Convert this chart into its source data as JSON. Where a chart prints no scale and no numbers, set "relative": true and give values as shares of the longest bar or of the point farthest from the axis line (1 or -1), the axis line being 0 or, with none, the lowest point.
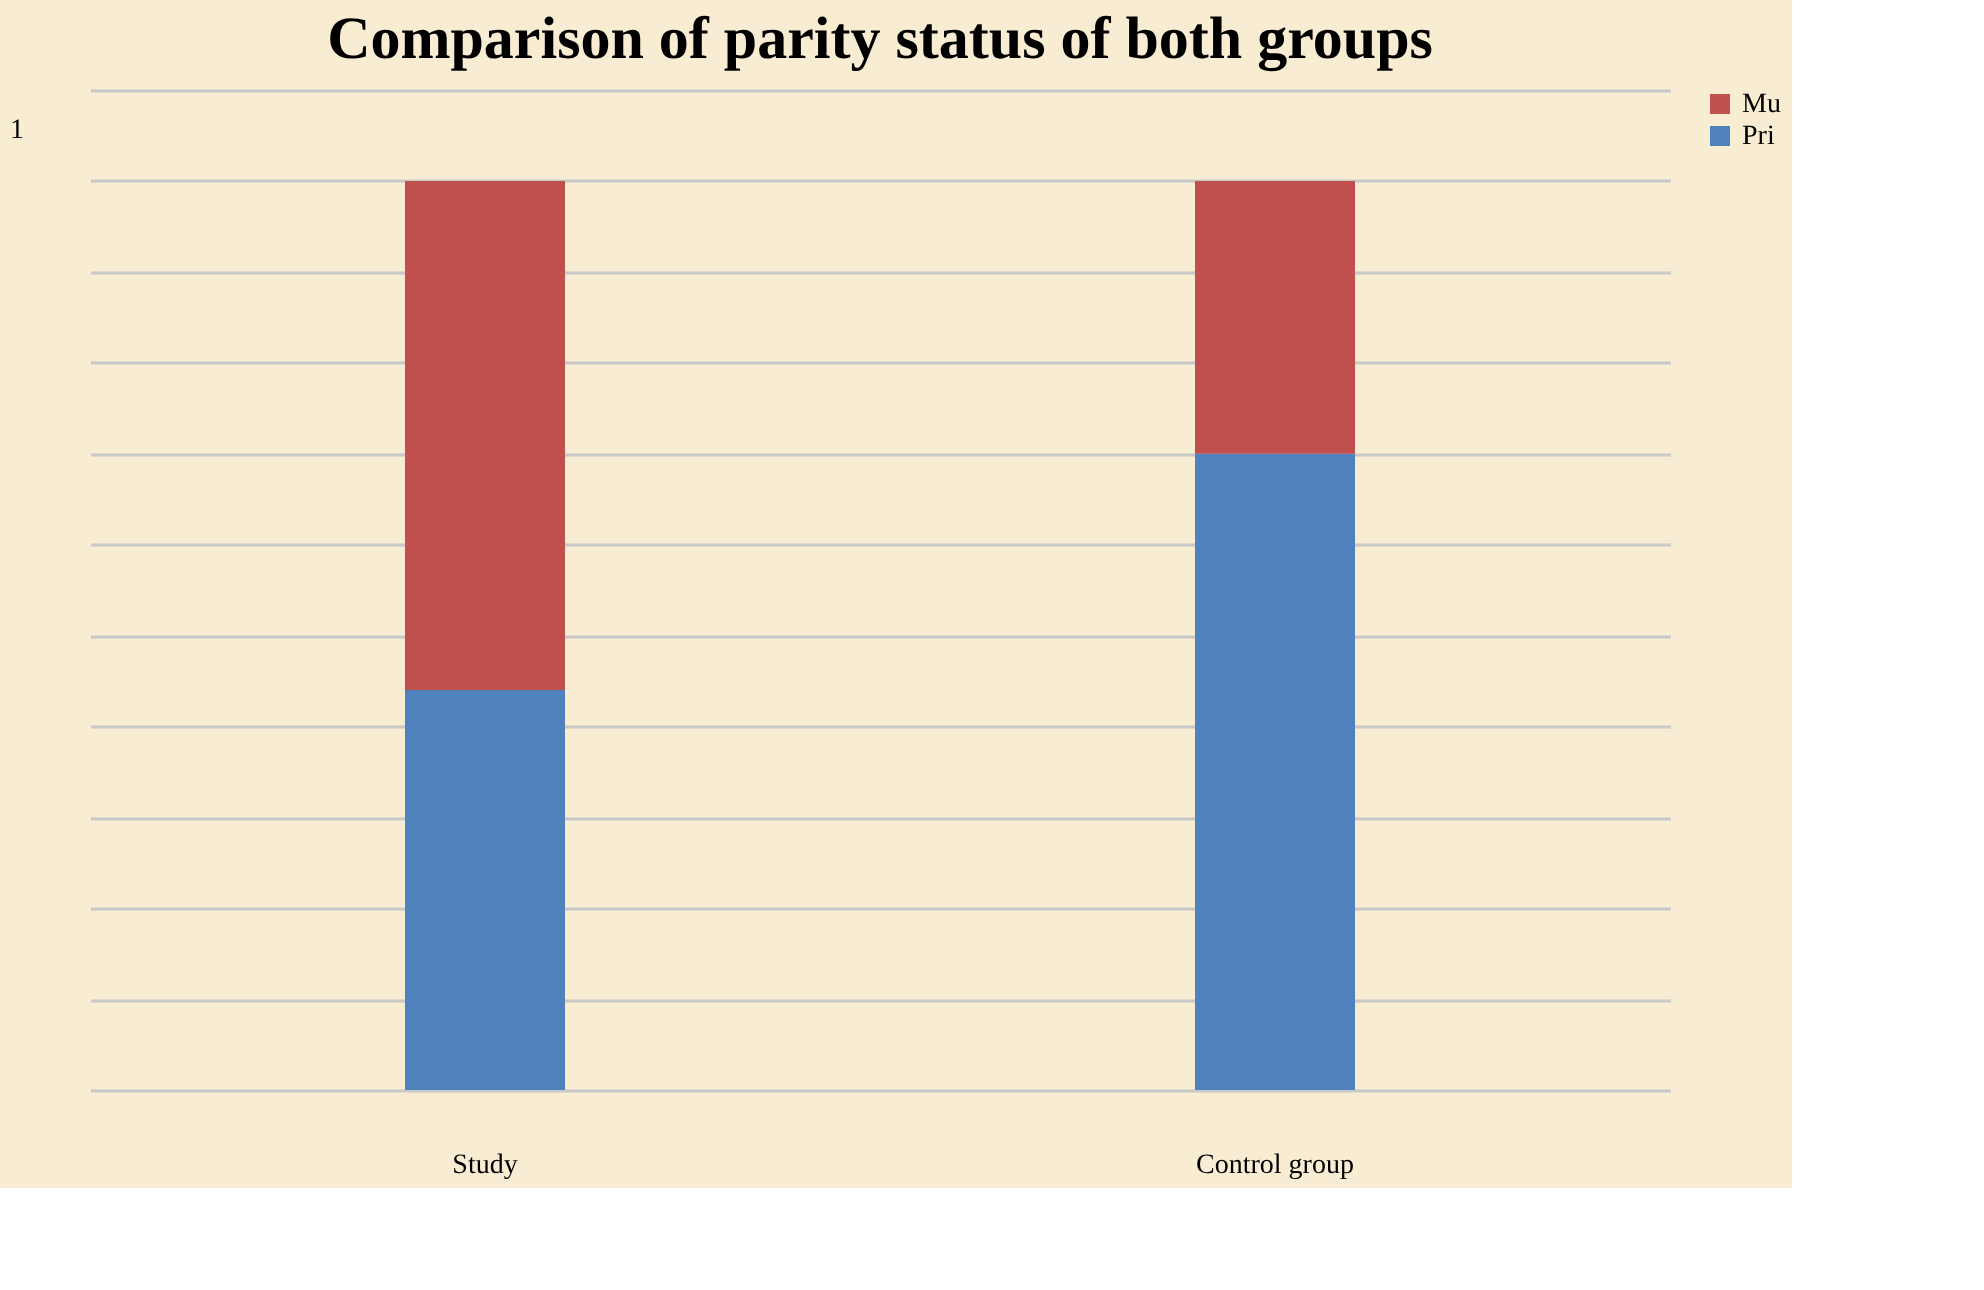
{
  "chart_data": {
    "type": "bar",
    "title": "Comparison  of parity status of both groups",
    "categories": [
      "Study",
      "Control group"
    ],
    "stacked": true,
    "relative": true,
    "grid": "y",
    "legend": "right",
    "annotations": [
      "1"
    ],
    "series": [
      {
        "name": "Pri",
        "color": "#4f81bd",
        "values": [
          0.44,
          0.7
        ]
      },
      {
        "name": "Mu",
        "color": "#c0504d",
        "values": [
          0.56,
          0.3
        ]
      }
    ]
  }
}
